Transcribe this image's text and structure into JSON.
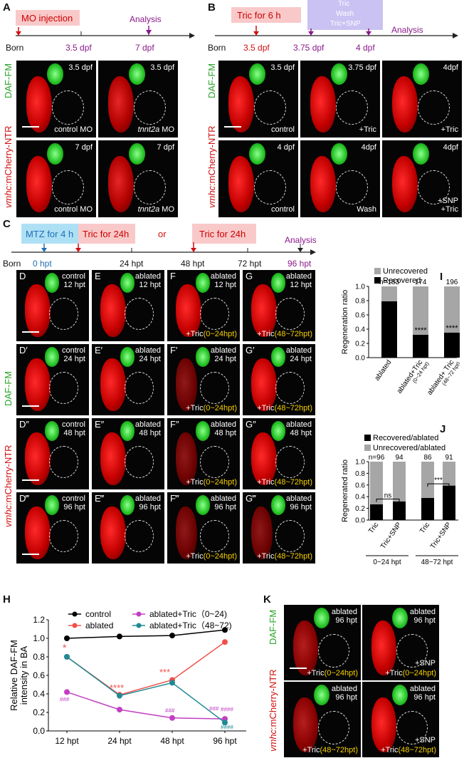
{
  "panelA": {
    "letter": "A",
    "mo_box": "MO injection",
    "ticks": [
      "Born",
      "3.5 dpf",
      "7 dpf"
    ],
    "analysis": "Analysis",
    "ylabel_green": "DAF-FM",
    "ylabel_red_italic": "vmhc",
    "ylabel_red": ":mCherry-NTR",
    "images": [
      {
        "tr": "3.5 dpf",
        "br": "control MO"
      },
      {
        "tr": "3.5 dpf",
        "br_italic": "tnnt2a",
        "br": " MO"
      },
      {
        "tr": "7 dpf",
        "br": "control MO"
      },
      {
        "tr": "7 dpf",
        "br_italic": "tnnt2a",
        "br": " MO"
      }
    ]
  },
  "panelB": {
    "letter": "B",
    "tric_box": "Tric for 6 h",
    "treat_boxes": [
      "Tric",
      "Wash",
      "Tric+SNP"
    ],
    "ticks": [
      "Born",
      "3.5 dpf",
      "3.75 dpf",
      "4 dpf"
    ],
    "analysis": "Analysis",
    "images": [
      {
        "tr": "3.5 dpf",
        "br": "control"
      },
      {
        "tr": "3.75 dpf",
        "br": "+Tric"
      },
      {
        "tr": "4dpf",
        "br": "+Tric"
      },
      {
        "tr": "4 dpf",
        "br": "control"
      },
      {
        "tr": "4dpf",
        "br": "Wash"
      },
      {
        "tr": "4dpf",
        "br": "+SNP\n+Tric"
      }
    ]
  },
  "panelC": {
    "letter": "C",
    "mtz_box": "MTZ for 4 h",
    "tric_box1": "Tric for 24h",
    "or": "or",
    "tric_box2": "Tric for 24h",
    "ticks": [
      "Born",
      "0 hpt",
      "24 hpt",
      "48 hpt",
      "72 hpt",
      "96 hpt"
    ],
    "analysis": "Analysis",
    "rows": [
      {
        "labels": [
          "D",
          "E",
          "F",
          "G"
        ],
        "time": "12 hpt"
      },
      {
        "labels": [
          "D′",
          "E′",
          "F′",
          "G′"
        ],
        "time": "24 hpt"
      },
      {
        "labels": [
          "D″",
          "E″",
          "F″",
          "G″"
        ],
        "time": "48 hpt"
      },
      {
        "labels": [
          "D‴",
          "E‴",
          "F‴",
          "G‴"
        ],
        "time": "96 hpt"
      }
    ],
    "cond_control": "control",
    "cond_ablated": "ablated",
    "tric_prefix": "+Tric",
    "tric_early": "(0~24hpt)",
    "tric_late": "(48~72hpt)"
  },
  "panelI": {
    "letter": "I",
    "legend": [
      "Unrecovered",
      "Recovered"
    ],
    "ylabel": "Regeneration ratio",
    "yticks": [
      "0.0",
      "0.2",
      "0.4",
      "0.6",
      "0.8",
      "1.0"
    ],
    "n_labels": [
      "n=183",
      "174",
      "196"
    ],
    "stars": [
      "****",
      "****"
    ],
    "xlabels": [
      "ablated",
      "ablated+Tric",
      "ablated+ Tric"
    ],
    "xsub": [
      "(0~24 hpt)",
      "(48~72 hpt)"
    ]
  },
  "panelJ": {
    "letter": "J",
    "legend": [
      "Recovered/ablated",
      "Unrecovered/ablated"
    ],
    "ylabel": "Regenerated ratio",
    "yticks": [
      "0.0",
      "0.2",
      "0.4",
      "0.6",
      "0.8",
      "1.0"
    ],
    "n_labels": [
      "n=96",
      "94",
      "86",
      "91"
    ],
    "sig": [
      "ns",
      "***"
    ],
    "xlabels": [
      "Tric",
      "Tric+SNP",
      "Tric",
      "Tric+SNP"
    ],
    "groups": [
      "0~24 hpt",
      "48~72 hpt"
    ]
  },
  "panelH": {
    "letter": "H",
    "ylabel1": "Relative DAF-FM",
    "ylabel2": "intensity in BA",
    "yticks": [
      "0.0",
      "0.2",
      "0.4",
      "0.6",
      "0.8",
      "1.0",
      "1.2"
    ],
    "xticks": [
      "12 hpt",
      "24 hpt",
      "48 hpt",
      "96 hpt"
    ],
    "legend": [
      "control",
      "ablated",
      "ablated+Tric（0~24)",
      "ablated+Tric（48~72)"
    ],
    "sig_red": [
      "*",
      "****",
      "***"
    ],
    "sig_hash": [
      "###",
      "###",
      "###",
      "####",
      "####"
    ]
  },
  "panelK": {
    "letter": "K",
    "images": [
      {
        "tr": "ablated\n96 hpt",
        "br_pre": "+Tric",
        "br_y": "(0~24hpt)"
      },
      {
        "tr": "ablated\n96 hpt",
        "br_mid": "+SNP",
        "br_pre": "+Tric",
        "br_y": "(0~24hpt)"
      },
      {
        "tr": "ablated\n96 hpt",
        "br_pre": "+Tric",
        "br_y": "(48~72hpt)"
      },
      {
        "tr": "ablated\n96 hpt",
        "br_mid": "+SNP",
        "br_pre": "+Tric",
        "br_y": "(48~72hpt)"
      }
    ]
  },
  "chart_data": [
    {
      "type": "bar",
      "title": "",
      "ylabel": "Regeneration ratio",
      "categories": [
        "ablated",
        "ablated+Tric (0~24 hpt)",
        "ablated+ Tric (48~72 hpt)"
      ],
      "series": [
        {
          "name": "Recovered",
          "values": [
            0.79,
            0.32,
            0.35
          ]
        },
        {
          "name": "Unrecovered",
          "values": [
            0.21,
            0.68,
            0.65
          ]
        }
      ],
      "n": [
        "183",
        "174",
        "196"
      ],
      "ylim": [
        0,
        1.0
      ],
      "colors": {
        "Recovered": "#000000",
        "Unrecovered": "#a6a6a6"
      }
    },
    {
      "type": "bar",
      "title": "",
      "ylabel": "Regenerated ratio",
      "categories": [
        "Tric (0~24 hpt)",
        "Tric+SNP (0~24 hpt)",
        "Tric (48~72 hpt)",
        "Tric+SNP (48~72 hpt)"
      ],
      "series": [
        {
          "name": "Recovered/ablated",
          "values": [
            0.27,
            0.32,
            0.38,
            0.59
          ]
        },
        {
          "name": "Unrecovered/ablated",
          "values": [
            0.73,
            0.68,
            0.62,
            0.41
          ]
        }
      ],
      "n": [
        "96",
        "94",
        "86",
        "91"
      ],
      "ylim": [
        0,
        1.0
      ],
      "colors": {
        "Recovered/ablated": "#000000",
        "Unrecovered/ablated": "#a6a6a6"
      }
    },
    {
      "type": "line",
      "title": "",
      "ylabel": "Relative DAF-FM intensity in BA",
      "x": [
        "12 hpt",
        "24 hpt",
        "48 hpt",
        "96 hpt"
      ],
      "ylim": [
        0,
        1.2
      ],
      "series": [
        {
          "name": "control",
          "color": "#000000",
          "values": [
            1.0,
            1.02,
            1.03,
            1.09
          ]
        },
        {
          "name": "ablated",
          "color": "#f0504a",
          "values": [
            0.8,
            0.39,
            0.55,
            0.96
          ]
        },
        {
          "name": "ablated+Tric（0~24)",
          "color": "#c23ec2",
          "values": [
            0.42,
            0.23,
            0.14,
            0.13
          ]
        },
        {
          "name": "ablated+Tric（48~72)",
          "color": "#1f8a95",
          "values": [
            0.8,
            0.38,
            0.52,
            0.09
          ]
        }
      ]
    }
  ]
}
